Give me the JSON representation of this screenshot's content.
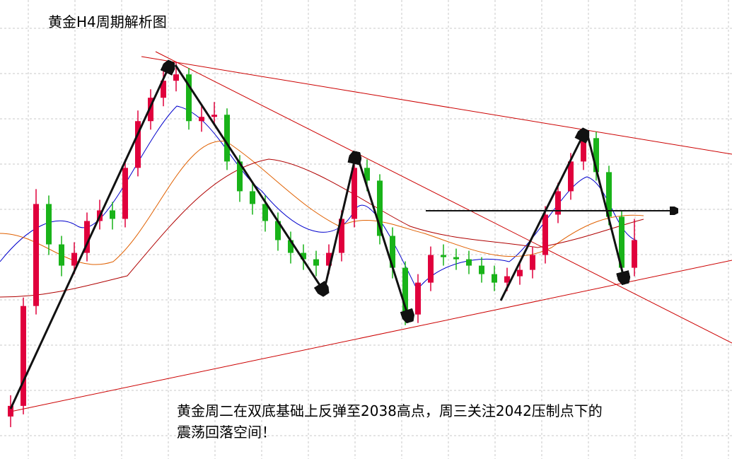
{
  "chart_data": {
    "type": "candlestick",
    "title": "黄金H4周期解析图",
    "annotation": [
      "黄金周二在双底基础上反弹至2038高点，周三关注2042压制点下的",
      "震荡回落空间！"
    ],
    "ylim": [
      1925,
      2141
    ],
    "up_color": "#e0003c",
    "down_color": "#19b319",
    "open": [
      1945,
      1950,
      1997,
      2045,
      2026,
      2016,
      2022,
      2037,
      2042,
      2038,
      2062,
      2084,
      2095,
      2103,
      2106,
      2084,
      2086,
      2087,
      2065,
      2051,
      2045,
      2037,
      2028,
      2022,
      2019,
      2016,
      2022,
      2038,
      2062,
      2056,
      2030,
      2015,
      1993,
      2008,
      2021,
      2020,
      2019,
      2016,
      2012,
      2008,
      2011,
      2014,
      2021,
      2040,
      2051,
      2065,
      2076,
      2060,
      2039,
      2015
    ],
    "high": [
      1955,
      2001,
      2052,
      2049,
      2030,
      2027,
      2041,
      2047,
      2046,
      2066,
      2089,
      2099,
      2108,
      2112,
      2109,
      2091,
      2093,
      2090,
      2068,
      2055,
      2049,
      2041,
      2032,
      2026,
      2023,
      2026,
      2042,
      2067,
      2066,
      2059,
      2034,
      2018,
      2012,
      2025,
      2026,
      2024,
      2023,
      2020,
      2016,
      2015,
      2018,
      2025,
      2044,
      2055,
      2069,
      2080,
      2079,
      2063,
      2042,
      2038
    ],
    "low": [
      1940,
      1946,
      1993,
      2021,
      2011,
      2012,
      2018,
      2033,
      2033,
      2034,
      2058,
      2080,
      2091,
      2098,
      2080,
      2079,
      2082,
      2061,
      2046,
      2040,
      2032,
      2023,
      2017,
      2014,
      2011,
      2012,
      2018,
      2034,
      2051,
      2026,
      2010,
      1988,
      1989,
      2004,
      2016,
      2014,
      2012,
      2008,
      2004,
      2004,
      2007,
      2010,
      2017,
      2036,
      2047,
      2061,
      2056,
      2035,
      2011,
      2011
    ],
    "close": [
      1950,
      1997,
      2045,
      2026,
      2016,
      2022,
      2037,
      2042,
      2038,
      2062,
      2084,
      2095,
      2103,
      2106,
      2084,
      2086,
      2087,
      2065,
      2051,
      2045,
      2037,
      2028,
      2022,
      2019,
      2016,
      2022,
      2038,
      2062,
      2056,
      2030,
      2015,
      1993,
      2008,
      2021,
      2020,
      2019,
      2016,
      2012,
      2008,
      2011,
      2014,
      2021,
      2040,
      2051,
      2065,
      2076,
      2060,
      2039,
      2015,
      2028
    ]
  }
}
